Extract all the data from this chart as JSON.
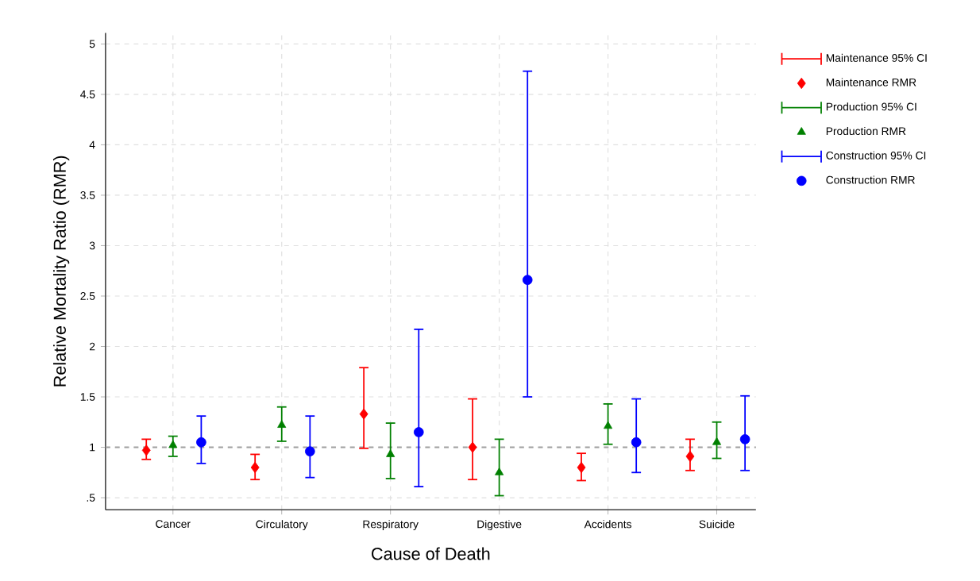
{
  "chart_data": {
    "type": "scatter",
    "xlabel": "Cause of Death",
    "ylabel": "Relative Mortality Ratio (RMR)",
    "categories": [
      "Cancer",
      "Circulatory",
      "Respiratory",
      "Digestive",
      "Accidents",
      "Suicide"
    ],
    "series": [
      {
        "name": "Maintenance RMR",
        "color": "#ff0000",
        "marker": "diamond",
        "values": [
          0.97,
          0.8,
          1.33,
          1.0,
          0.8,
          0.91
        ],
        "errors": [
          [
            0.88,
            1.08
          ],
          [
            0.68,
            0.93
          ],
          [
            0.99,
            1.79
          ],
          [
            0.68,
            1.48
          ],
          [
            0.67,
            0.94
          ],
          [
            0.77,
            1.08
          ]
        ]
      },
      {
        "name": "Production RMR",
        "color": "#008000",
        "marker": "triangle",
        "values": [
          1.02,
          1.22,
          0.93,
          0.75,
          1.21,
          1.05
        ],
        "errors": [
          [
            0.91,
            1.11
          ],
          [
            1.06,
            1.4
          ],
          [
            0.69,
            1.24
          ],
          [
            0.52,
            1.08
          ],
          [
            1.03,
            1.43
          ],
          [
            0.89,
            1.25
          ]
        ]
      },
      {
        "name": "Construction RMR",
        "color": "#0000ff",
        "marker": "circle",
        "values": [
          1.05,
          0.96,
          1.15,
          2.66,
          1.05,
          1.08
        ],
        "errors": [
          [
            0.84,
            1.31
          ],
          [
            0.7,
            1.31
          ],
          [
            0.61,
            2.17
          ],
          [
            1.5,
            4.73
          ],
          [
            0.75,
            1.48
          ],
          [
            0.77,
            1.51
          ]
        ]
      }
    ],
    "annotations": [
      "Maintenance 95% CI",
      "Production 95% CI",
      "Construction 95% CI"
    ],
    "ylim": [
      0.38,
      5.11
    ],
    "yticks": [
      {
        "value": 0.5,
        "label": ".5"
      },
      1,
      1.5,
      2,
      2.5,
      3,
      3.5,
      4,
      4.5,
      5
    ],
    "ref_lines": [
      {
        "axis": "y",
        "value": 1,
        "color": "#a0a0a0",
        "line_style": "dashed"
      }
    ],
    "grid": true,
    "legend": "top right"
  }
}
